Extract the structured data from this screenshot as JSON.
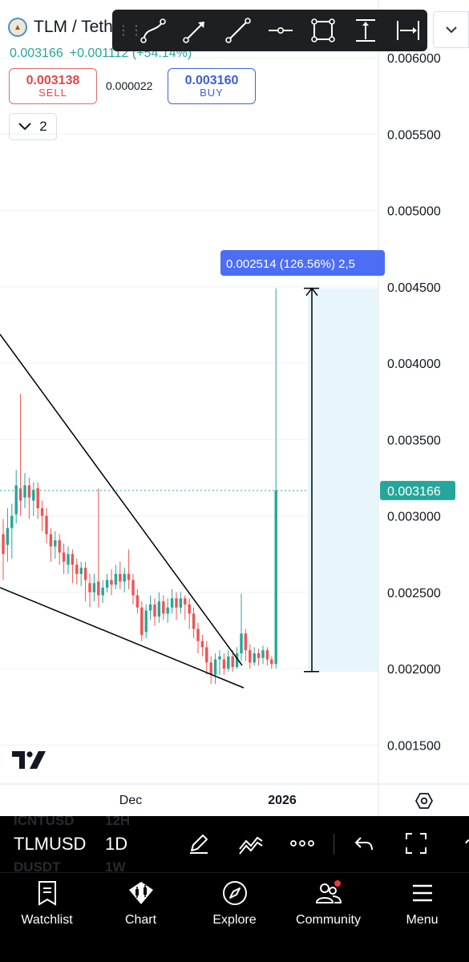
{
  "header": {
    "symbol": "TLM / Teth",
    "last_price": "0.003166",
    "change": "+0.001112 (+54.14%)"
  },
  "trade": {
    "sell_price": "0.003138",
    "sell_label": "SELL",
    "spread": "0.000022",
    "buy_price": "0.003160",
    "buy_label": "BUY"
  },
  "collapse_count": "2",
  "drawing_toolbar": {
    "tools": [
      "curve-tool",
      "arrow-tool",
      "trend-line-tool",
      "horizontal-ray-tool",
      "rectangle-tool",
      "vertical-range-tool",
      "horizontal-range-tool"
    ]
  },
  "chart": {
    "price_axis": [
      "0.006000",
      "0.005500",
      "0.005000",
      "0.004500",
      "0.004000",
      "0.003500",
      "0.003000",
      "0.002500",
      "0.002000",
      "0.001500"
    ],
    "current_price_tag": "0.003166",
    "measure_label": "0.002514 (126.56%) 2,5",
    "time_axis": [
      "Dec",
      "2026"
    ],
    "colors": {
      "up": "#26a69a",
      "down": "#ef5350",
      "measure": "#4c6ef5"
    }
  },
  "bottom_bar": {
    "symbol": "TLMUSD",
    "timeframe": "1D",
    "ghost_symbols": [
      "ICNTUSD",
      "DUSDT"
    ],
    "ghost_timeframes": [
      "12H",
      "1W"
    ]
  },
  "tabs": [
    {
      "label": "Watchlist",
      "icon": "watchlist-icon"
    },
    {
      "label": "Chart",
      "icon": "chart-icon"
    },
    {
      "label": "Explore",
      "icon": "compass-icon"
    },
    {
      "label": "Community",
      "icon": "community-icon"
    },
    {
      "label": "Menu",
      "icon": "menu-icon"
    }
  ]
}
